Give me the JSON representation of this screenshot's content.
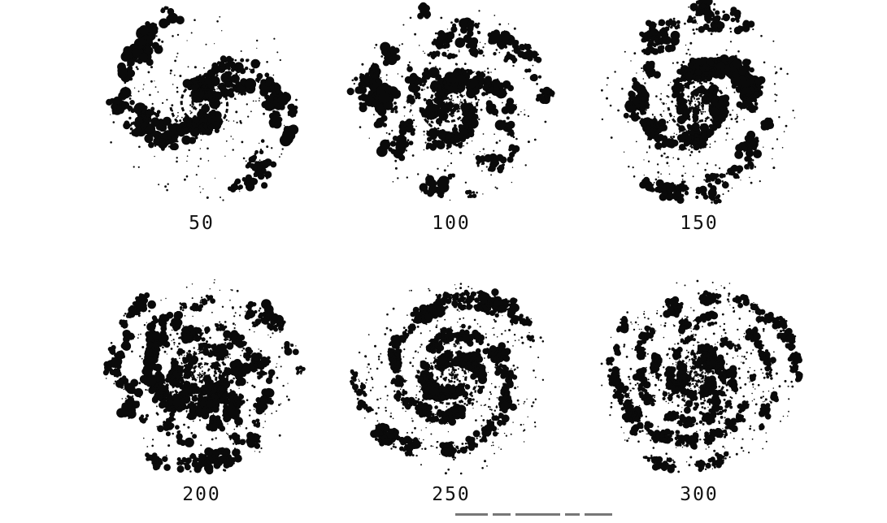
{
  "figure": {
    "panels": [
      {
        "label": "50",
        "ink": "#0a0a0a"
      },
      {
        "label": "100",
        "ink": "#0a0a0a"
      },
      {
        "label": "150",
        "ink": "#0a0a0a"
      },
      {
        "label": "200",
        "ink": "#0a0a0a"
      },
      {
        "label": "250",
        "ink": "#0a0a0a"
      },
      {
        "label": "300",
        "ink": "#0a0a0a"
      }
    ]
  }
}
